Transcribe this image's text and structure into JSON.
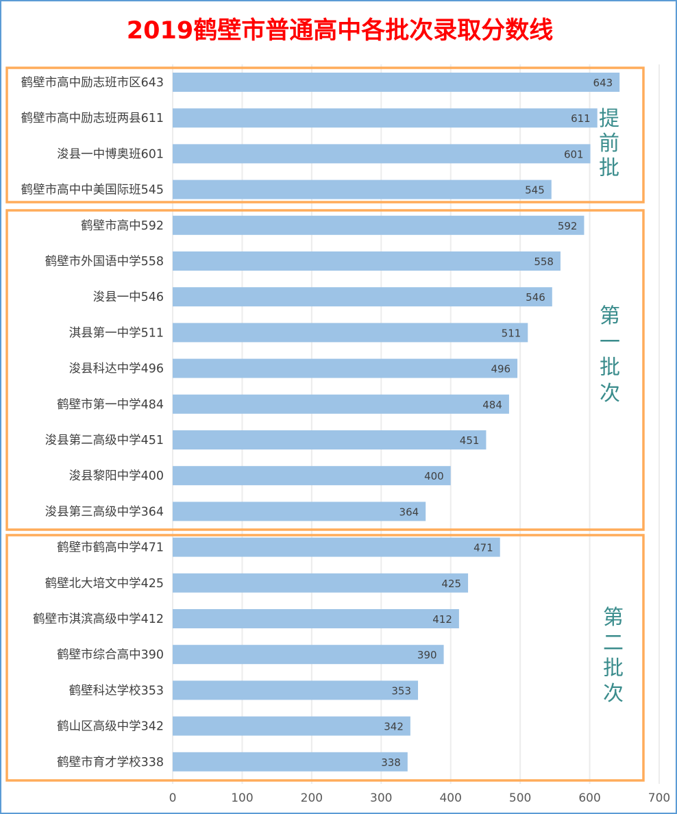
{
  "chart_data": {
    "type": "bar",
    "orientation": "horizontal",
    "title": "2019鹤壁市普通高中各批次录取分数线",
    "categories": [
      "鹤壁市高中励志班市区643",
      "鹤壁市高中励志班两县611",
      "浚县一中博奥班601",
      "鹤壁市高中中美国际班545",
      "鹤壁市高中592",
      "鹤壁市外国语中学558",
      "浚县一中546",
      "淇县第一中学511",
      "浚县科达中学496",
      "鹤壁市第一中学484",
      "浚县第二高级中学451",
      "浚县黎阳中学400",
      "浚县第三高级中学364",
      "鹤壁市鹤高中学471",
      "鹤壁北大培文中学425",
      "鹤壁市淇滨高级中学412",
      "鹤壁市综合高中390",
      "鹤壁科达学校353",
      "鹤山区高级中学342",
      "鹤壁市育才学校338"
    ],
    "values": [
      643,
      611,
      601,
      545,
      592,
      558,
      546,
      511,
      496,
      484,
      451,
      400,
      364,
      471,
      425,
      412,
      390,
      353,
      342,
      338
    ],
    "groups": [
      {
        "label": "提前批",
        "count": 4
      },
      {
        "label": "第一批次",
        "count": 9
      },
      {
        "label": "第二批次",
        "count": 7
      }
    ],
    "xlim": [
      0,
      700
    ],
    "xticks": [
      0,
      100,
      200,
      300,
      400,
      500,
      600,
      700
    ],
    "grid": true,
    "legend": "none",
    "data_labels": true,
    "colors": {
      "bar": "#9dc3e6",
      "group_box": "#ffac5a",
      "group_label": "#3a8c8c",
      "title": "#ff0000",
      "border": "#5b9bd5"
    }
  }
}
